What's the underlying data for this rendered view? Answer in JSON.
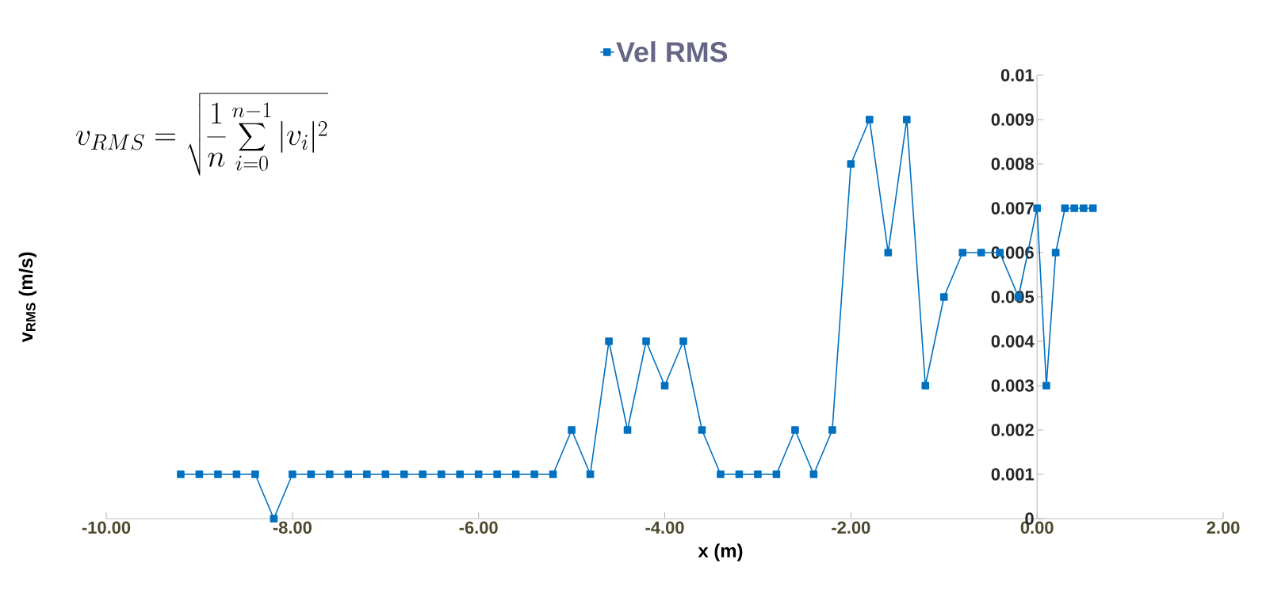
{
  "chart_data": {
    "type": "line",
    "xlabel": "x (m)",
    "ylabel": "v$_{RMS}$ (m/s)",
    "x": [
      -9.2,
      -9.0,
      -8.8,
      -8.6,
      -8.4,
      -8.2,
      -8.0,
      -7.8,
      -7.6,
      -7.4,
      -7.2,
      -7.0,
      -6.8,
      -6.6,
      -6.4,
      -6.2,
      -6.0,
      -5.8,
      -5.6,
      -5.4,
      -5.2,
      -5.0,
      -4.8,
      -4.6,
      -4.4,
      -4.2,
      -4.0,
      -3.8,
      -3.6,
      -3.4,
      -3.2,
      -3.0,
      -2.8,
      -2.6,
      -2.4,
      -2.2,
      -2.0,
      -1.8,
      -1.6,
      -1.4,
      -1.2,
      -1.0,
      -0.8,
      -0.6,
      -0.4,
      -0.2,
      0.0,
      0.1,
      0.2,
      0.3,
      0.4,
      0.5,
      0.6
    ],
    "series": [
      {
        "name": "Vel RMS",
        "color": "#0070c0",
        "values": [
          0.001,
          0.001,
          0.001,
          0.001,
          0.001,
          0,
          0.001,
          0.001,
          0.001,
          0.001,
          0.001,
          0.001,
          0.001,
          0.001,
          0.001,
          0.001,
          0.001,
          0.001,
          0.001,
          0.001,
          0.001,
          0.002,
          0.001,
          0.004,
          0.002,
          0.004,
          0.003,
          0.004,
          0.002,
          0.001,
          0.001,
          0.001,
          0.001,
          0.002,
          0.001,
          0.002,
          0.008,
          0.009,
          0.006,
          0.009,
          0.003,
          0.005,
          0.006,
          0.006,
          0.006,
          0.005,
          0.007,
          0.003,
          0.006,
          0.007,
          0.007,
          0.007,
          0.007
        ]
      }
    ],
    "xlim": [
      -10,
      2
    ],
    "ylim": [
      0,
      0.01
    ],
    "xticks": [
      {
        "value": -10,
        "label": "-10.00"
      },
      {
        "value": -8,
        "label": "-8.00"
      },
      {
        "value": -6,
        "label": "-6.00"
      },
      {
        "value": -4,
        "label": "-4.00"
      },
      {
        "value": -2,
        "label": "-2.00"
      },
      {
        "value": 0,
        "label": "0.00"
      },
      {
        "value": 2,
        "label": "2.00"
      }
    ],
    "yticks": [
      0,
      0.001,
      0.002,
      0.003,
      0.004,
      0.005,
      0.006,
      0.007,
      0.008,
      0.009,
      0.01
    ],
    "annotations": [
      "v_{RMS} = \\sqrt{\\frac{1}{n}\\sum_{i=0}^{n-1}|v_i|^2}"
    ],
    "grid": false,
    "legend": "top",
    "marker": "square",
    "line_style": "solid"
  }
}
